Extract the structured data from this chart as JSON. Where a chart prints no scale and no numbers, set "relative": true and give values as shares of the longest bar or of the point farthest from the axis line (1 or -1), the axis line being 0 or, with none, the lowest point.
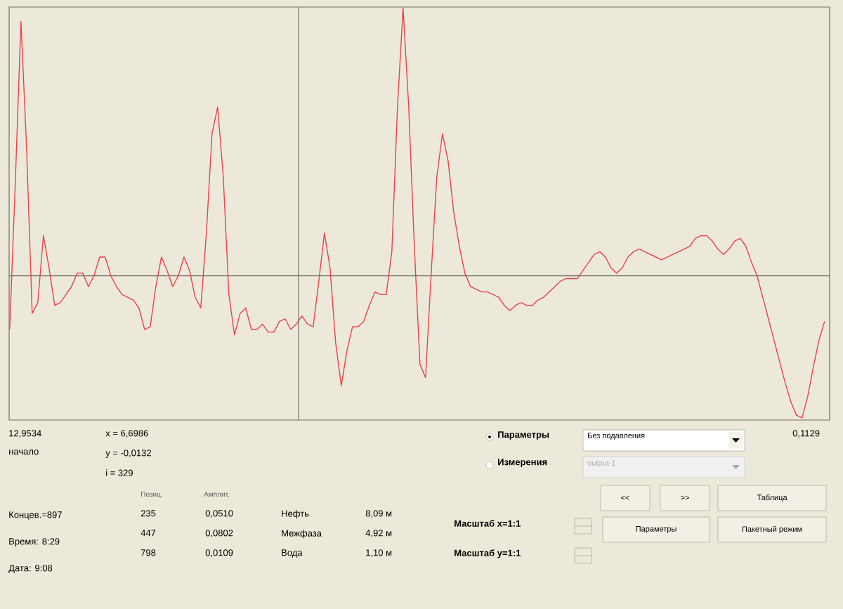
{
  "chart_data": {
    "type": "line",
    "relative": true,
    "tick_labels": false,
    "marker": "none",
    "line_style": "solid",
    "categories": [
      null,
      null,
      null,
      null,
      null,
      null,
      null,
      null,
      null,
      null,
      null,
      null,
      null,
      null,
      null,
      null,
      null,
      null,
      null,
      null,
      null,
      null,
      null,
      null,
      null,
      null,
      null,
      null,
      null,
      null,
      null,
      null,
      null,
      null,
      null,
      null,
      null,
      null,
      null,
      null,
      null,
      null,
      null,
      null,
      null,
      null,
      null,
      null,
      null,
      null,
      null,
      null,
      null,
      null,
      null,
      null,
      null,
      null,
      null,
      null,
      null,
      null,
      null,
      null,
      null,
      null,
      null,
      null,
      null,
      null,
      null,
      null,
      null,
      null,
      null,
      null,
      null,
      null,
      null,
      null,
      null,
      null,
      null,
      null,
      null,
      null,
      null,
      null,
      null,
      null,
      null,
      null,
      null,
      null,
      null,
      null,
      null,
      null,
      null,
      null,
      null,
      null,
      null,
      null,
      null,
      null,
      null,
      null,
      null,
      null,
      null,
      null,
      null,
      null,
      null,
      null,
      null,
      null,
      null,
      null,
      null,
      null,
      null,
      null,
      null,
      null,
      null,
      null,
      null,
      null,
      null,
      null,
      null,
      null,
      null,
      null,
      null,
      null,
      null,
      null,
      null,
      null,
      null,
      null,
      null,
      null
    ],
    "series": [
      {
        "color": "#e8434b",
        "values": [
          -0.2,
          0.35,
          0.95,
          0.48,
          -0.14,
          -0.1,
          0.15,
          0.03,
          -0.11,
          -0.1,
          -0.07,
          -0.04,
          0.01,
          0.01,
          -0.04,
          0,
          0.07,
          0.07,
          0,
          -0.04,
          -0.07,
          -0.08,
          -0.09,
          -0.12,
          -0.2,
          -0.19,
          -0.04,
          0.07,
          0.02,
          -0.04,
          0,
          0.07,
          0.02,
          -0.08,
          -0.12,
          0.16,
          0.53,
          0.63,
          0.37,
          -0.07,
          -0.22,
          -0.14,
          -0.12,
          -0.2,
          -0.2,
          -0.18,
          -0.21,
          -0.21,
          -0.17,
          -0.16,
          -0.2,
          -0.18,
          -0.15,
          -0.18,
          -0.19,
          -0.02,
          0.16,
          0.03,
          -0.25,
          -0.41,
          -0.28,
          -0.19,
          -0.19,
          -0.17,
          -0.11,
          -0.06,
          -0.07,
          -0.07,
          0.09,
          0.63,
          1,
          0.63,
          0.11,
          -0.33,
          -0.38,
          0.01,
          0.37,
          0.53,
          0.43,
          0.24,
          0.11,
          0.01,
          -0.04,
          -0.05,
          -0.06,
          -0.06,
          -0.07,
          -0.08,
          -0.11,
          -0.13,
          -0.11,
          -0.1,
          -0.11,
          -0.11,
          -0.09,
          -0.08,
          -0.06,
          -0.04,
          -0.02,
          -0.01,
          -0.01,
          -0.01,
          0.02,
          0.05,
          0.08,
          0.09,
          0.07,
          0.03,
          0.01,
          0.03,
          0.07,
          0.09,
          0.1,
          0.09,
          0.08,
          0.07,
          0.06,
          0.07,
          0.08,
          0.09,
          0.1,
          0.11,
          0.14,
          0.15,
          0.15,
          0.13,
          0.1,
          0.08,
          0.1,
          0.13,
          0.14,
          0.11,
          0.05,
          0,
          -0.08,
          -0.16,
          -0.24,
          -0.32,
          -0.4,
          -0.47,
          -0.52,
          -0.53,
          -0.45,
          -0.34,
          -0.24,
          -0.17
        ]
      }
    ],
    "annotations": [
      "12,9534",
      "начало",
      "x = 6,6986",
      "y = -0,0132",
      "i = 329",
      "Позиц.",
      "Амплит.",
      "Концев.=897",
      "235",
      "0,0510",
      "Нефть",
      "8,09 м",
      "447",
      "0,0802",
      "Межфаза",
      "4,92 м",
      "Время:  8:29",
      "798",
      "0,0109",
      "Вода",
      "1,10 м",
      "Дата:    9:08",
      "Параметры",
      "Без подавления",
      "0,1129",
      "Измерения",
      "output-1",
      "<<",
      ">>",
      "Таблица",
      "Масштаб x=1:1",
      "Параметры",
      "Пакетный режим",
      "Масштаб y=1:1"
    ]
  }
}
